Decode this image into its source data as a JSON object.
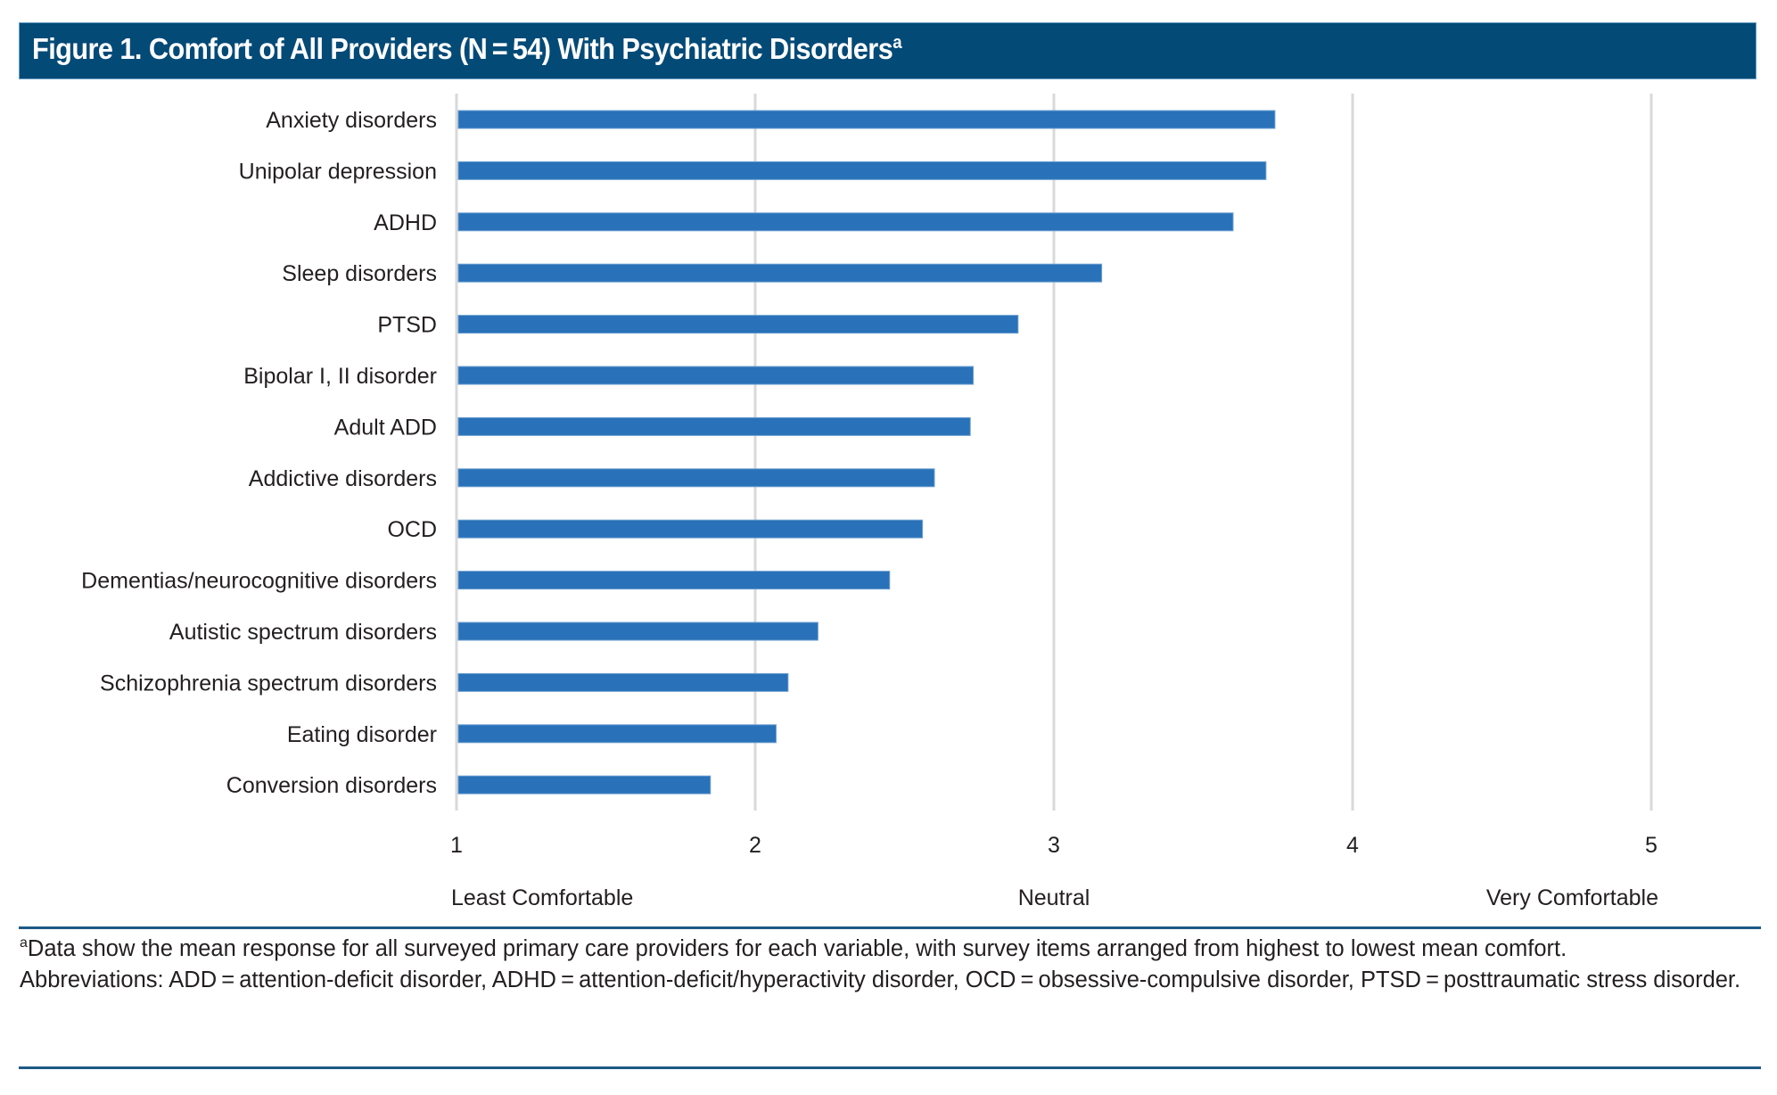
{
  "header": {
    "title": "Figure 1. Comfort of All Providers (N = 54) With Psychiatric Disorders",
    "title_superscript": "a"
  },
  "colors": {
    "header_bg": "#044a77",
    "bar": "#2971b8",
    "gridline": "#d9d9d9",
    "rule": "#1d5a86"
  },
  "chart_data": {
    "type": "bar",
    "orientation": "horizontal",
    "title": "Comfort of All Providers (N = 54) With Psychiatric Disorders",
    "xlabel": "",
    "ylabel": "",
    "xlim": [
      1,
      5
    ],
    "grid": true,
    "categories": [
      "Anxiety disorders",
      "Unipolar depression",
      "ADHD",
      "Sleep disorders",
      "PTSD",
      "Bipolar I, II disorder",
      "Adult ADD",
      "Addictive disorders",
      "OCD",
      "Dementias/neurocognitive disorders",
      "Autistic spectrum disorders",
      "Schizophrenia spectrum disorders",
      "Eating disorder",
      "Conversion disorders"
    ],
    "values": [
      3.74,
      3.71,
      3.6,
      3.16,
      2.88,
      2.73,
      2.72,
      2.6,
      2.56,
      2.45,
      2.21,
      2.11,
      2.07,
      1.85
    ],
    "x_ticks": [
      "1",
      "2",
      "3",
      "4",
      "5"
    ],
    "scale_labels": [
      {
        "text": "Least Comfortable",
        "at": 1,
        "align": "start"
      },
      {
        "text": "Neutral",
        "at": 3,
        "align": "middle"
      },
      {
        "text": "Very Comfortable",
        "at": 5,
        "align": "end"
      }
    ]
  },
  "footnotes": {
    "note_marker": "a",
    "note_text": "Data show the mean response for all surveyed primary care providers for each variable, with survey items arranged from highest to lowest mean comfort.",
    "abbreviations": "Abbreviations: ADD = attention-deficit disorder, ADHD = attention-deficit/hyperactivity disorder, OCD = obsessive-compulsive disorder, PTSD = posttraumatic stress disorder."
  }
}
